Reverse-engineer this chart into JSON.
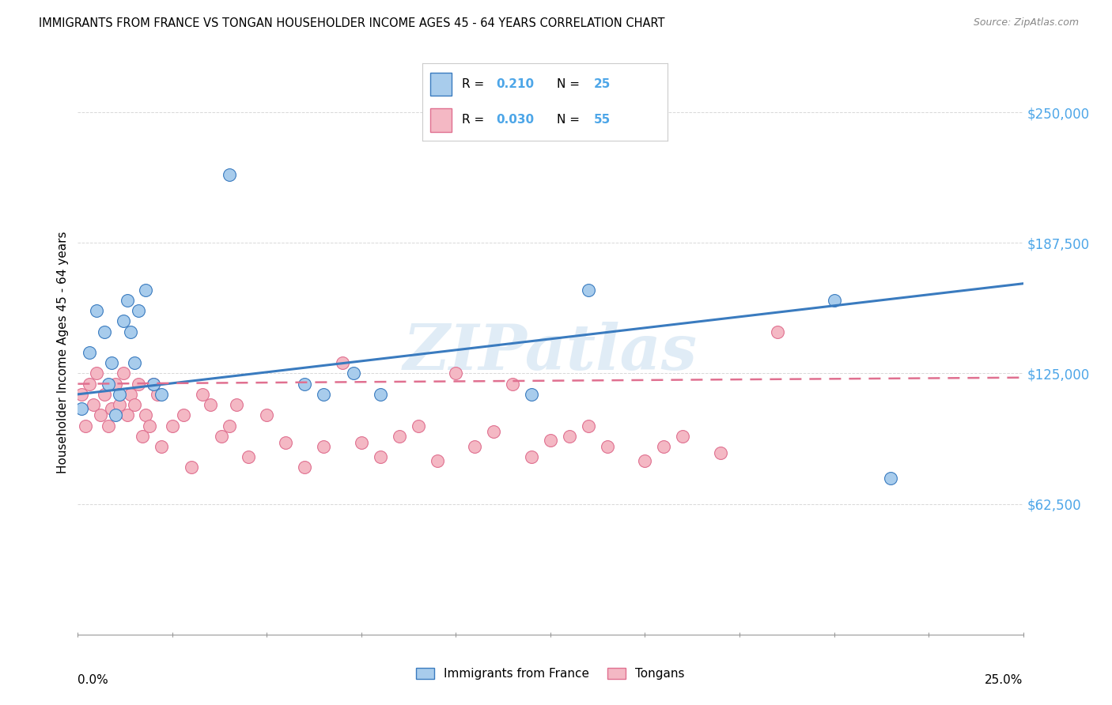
{
  "title": "IMMIGRANTS FROM FRANCE VS TONGAN HOUSEHOLDER INCOME AGES 45 - 64 YEARS CORRELATION CHART",
  "source": "Source: ZipAtlas.com",
  "ylabel": "Householder Income Ages 45 - 64 years",
  "ytick_labels": [
    "$62,500",
    "$125,000",
    "$187,500",
    "$250,000"
  ],
  "ytick_values": [
    62500,
    125000,
    187500,
    250000
  ],
  "xlim": [
    0.0,
    0.25
  ],
  "ylim": [
    0,
    270000
  ],
  "legend_label1": "Immigrants from France",
  "legend_label2": "Tongans",
  "r1": "0.210",
  "n1": "25",
  "r2": "0.030",
  "n2": "55",
  "color_blue": "#a8ccec",
  "color_pink": "#f4b8c4",
  "line_color_blue": "#3a7bbf",
  "line_color_pink": "#e07090",
  "france_x": [
    0.001,
    0.003,
    0.005,
    0.007,
    0.008,
    0.009,
    0.01,
    0.011,
    0.012,
    0.013,
    0.014,
    0.015,
    0.016,
    0.018,
    0.02,
    0.022,
    0.04,
    0.06,
    0.065,
    0.073,
    0.08,
    0.12,
    0.135,
    0.2,
    0.215
  ],
  "france_y": [
    108000,
    135000,
    155000,
    145000,
    120000,
    130000,
    105000,
    115000,
    150000,
    160000,
    145000,
    130000,
    155000,
    165000,
    120000,
    115000,
    220000,
    120000,
    115000,
    125000,
    115000,
    115000,
    165000,
    160000,
    75000
  ],
  "tonga_x": [
    0.001,
    0.002,
    0.003,
    0.004,
    0.005,
    0.006,
    0.007,
    0.008,
    0.009,
    0.01,
    0.011,
    0.012,
    0.013,
    0.014,
    0.015,
    0.016,
    0.017,
    0.018,
    0.019,
    0.02,
    0.021,
    0.022,
    0.025,
    0.028,
    0.03,
    0.033,
    0.035,
    0.038,
    0.04,
    0.042,
    0.045,
    0.05,
    0.055,
    0.06,
    0.065,
    0.07,
    0.075,
    0.08,
    0.085,
    0.09,
    0.095,
    0.1,
    0.105,
    0.11,
    0.115,
    0.12,
    0.125,
    0.13,
    0.135,
    0.14,
    0.15,
    0.155,
    0.16,
    0.17,
    0.185
  ],
  "tonga_y": [
    115000,
    100000,
    120000,
    110000,
    125000,
    105000,
    115000,
    100000,
    108000,
    120000,
    110000,
    125000,
    105000,
    115000,
    110000,
    120000,
    95000,
    105000,
    100000,
    120000,
    115000,
    90000,
    100000,
    105000,
    80000,
    115000,
    110000,
    95000,
    100000,
    110000,
    85000,
    105000,
    92000,
    80000,
    90000,
    130000,
    92000,
    85000,
    95000,
    100000,
    83000,
    125000,
    90000,
    97000,
    120000,
    85000,
    93000,
    95000,
    100000,
    90000,
    83000,
    90000,
    95000,
    87000,
    145000
  ],
  "watermark": "ZIPatlas",
  "background_color": "#ffffff",
  "grid_color": "#d8d8d8",
  "blue_trend_x0": 0.0,
  "blue_trend_y0": 115000,
  "blue_trend_x1": 0.25,
  "blue_trend_y1": 168000,
  "pink_trend_x0": 0.0,
  "pink_trend_y0": 120000,
  "pink_trend_x1": 0.25,
  "pink_trend_y1": 123000
}
